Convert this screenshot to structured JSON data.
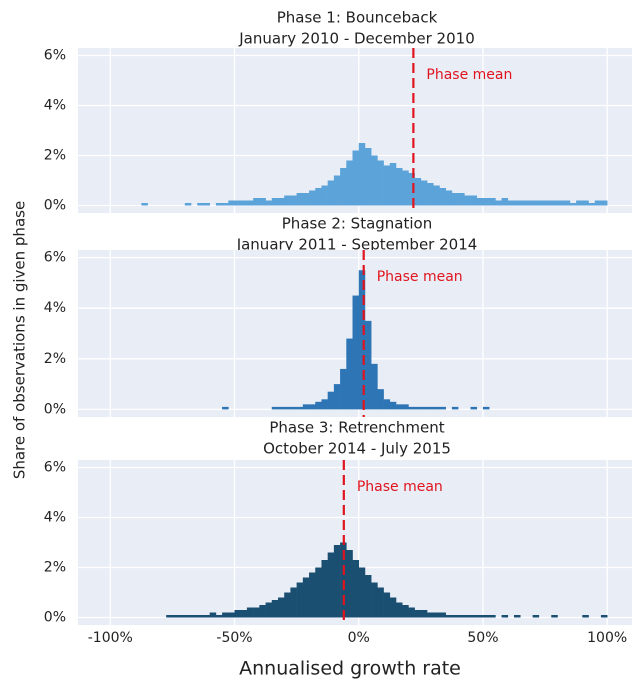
{
  "chart_data": [
    {
      "type": "histogram",
      "title": "Phase 1: Bounceback",
      "subtitle": "January 2010 - December 2010",
      "color": "#5ba3d9",
      "bins": [
        -100,
        -97.5,
        -95,
        -92.5,
        -90,
        -87.5,
        -85,
        -82.5,
        -80,
        -77.5,
        -75,
        -72.5,
        -70,
        -67.5,
        -65,
        -62.5,
        -60,
        -57.5,
        -55,
        -52.5,
        -50,
        -47.5,
        -45,
        -42.5,
        -40,
        -37.5,
        -35,
        -32.5,
        -30,
        -27.5,
        -25,
        -22.5,
        -20,
        -17.5,
        -15,
        -12.5,
        -10,
        -7.5,
        -5,
        -2.5,
        0,
        2.5,
        5,
        7.5,
        10,
        12.5,
        15,
        17.5,
        20,
        22.5,
        25,
        27.5,
        30,
        32.5,
        35,
        37.5,
        40,
        42.5,
        45,
        47.5,
        50,
        52.5,
        55,
        57.5,
        60,
        62.5,
        65,
        67.5,
        70,
        72.5,
        75,
        77.5,
        80,
        82.5,
        85,
        87.5,
        90,
        92.5,
        95,
        97.5,
        100
      ],
      "values": [
        0,
        0,
        0,
        0,
        0,
        0.1,
        0,
        0,
        0,
        0,
        0,
        0,
        0.1,
        0,
        0.1,
        0.1,
        0,
        0.1,
        0.1,
        0.2,
        0.2,
        0.2,
        0.2,
        0.3,
        0.3,
        0.2,
        0.3,
        0.3,
        0.4,
        0.4,
        0.5,
        0.5,
        0.6,
        0.7,
        0.8,
        1.0,
        1.2,
        1.5,
        1.8,
        2.2,
        2.5,
        2.3,
        2.0,
        1.8,
        1.6,
        1.7,
        1.5,
        1.4,
        1.3,
        1.1,
        1.0,
        0.9,
        0.8,
        0.7,
        0.6,
        0.5,
        0.5,
        0.4,
        0.4,
        0.3,
        0.3,
        0.3,
        0.2,
        0.3,
        0.2,
        0.2,
        0.2,
        0.2,
        0.2,
        0.2,
        0.2,
        0.2,
        0.2,
        0.2,
        0.1,
        0.2,
        0.2,
        0.1,
        0.2,
        0.2
      ],
      "mean": 22,
      "annotation": "Phase mean",
      "xlim": [
        -113,
        110
      ],
      "ylim": [
        -0.3,
        6.3
      ],
      "yticks": [
        {
          "value": 0,
          "label": "0%"
        },
        {
          "value": 2,
          "label": "2%"
        },
        {
          "value": 4,
          "label": "4%"
        },
        {
          "value": 6,
          "label": "6%"
        }
      ],
      "grid": true
    },
    {
      "type": "histogram",
      "title": "Phase 2: Stagnation",
      "subtitle": "January 2011 - September 2014",
      "color": "#2e75b6",
      "ylabel": "Share of observations in given phase",
      "bins": [
        -100,
        -97.5,
        -95,
        -92.5,
        -90,
        -87.5,
        -85,
        -82.5,
        -80,
        -77.5,
        -75,
        -72.5,
        -70,
        -67.5,
        -65,
        -62.5,
        -60,
        -57.5,
        -55,
        -52.5,
        -50,
        -47.5,
        -45,
        -42.5,
        -40,
        -37.5,
        -35,
        -32.5,
        -30,
        -27.5,
        -25,
        -22.5,
        -20,
        -17.5,
        -15,
        -12.5,
        -10,
        -7.5,
        -5,
        -2.5,
        0,
        2.5,
        5,
        7.5,
        10,
        12.5,
        15,
        17.5,
        20,
        22.5,
        25,
        27.5,
        30,
        32.5,
        35,
        37.5,
        40,
        42.5,
        45,
        47.5,
        50,
        52.5,
        55,
        57.5,
        60,
        62.5,
        65,
        67.5,
        70,
        72.5,
        75,
        77.5,
        80,
        82.5,
        85,
        87.5,
        90,
        92.5,
        95,
        97.5,
        100
      ],
      "values": [
        0,
        0,
        0,
        0,
        0,
        0,
        0,
        0,
        0,
        0,
        0,
        0,
        0,
        0,
        0,
        0,
        0,
        0,
        0.1,
        0,
        0,
        0,
        0,
        0,
        0,
        0,
        0.1,
        0.1,
        0.1,
        0.1,
        0.1,
        0.2,
        0.2,
        0.3,
        0.4,
        0.7,
        1.0,
        1.6,
        2.8,
        4.5,
        5.5,
        3.5,
        1.8,
        0.8,
        0.4,
        0.3,
        0.2,
        0.2,
        0.1,
        0.1,
        0.1,
        0.1,
        0.1,
        0.1,
        0,
        0.1,
        0,
        0,
        0.1,
        0,
        0.1,
        0,
        0,
        0,
        0,
        0,
        0,
        0,
        0,
        0,
        0,
        0,
        0,
        0,
        0,
        0,
        0,
        0,
        0,
        0
      ],
      "mean": 2,
      "annotation": "Phase mean",
      "xlim": [
        -113,
        110
      ],
      "ylim": [
        -0.3,
        6.3
      ],
      "yticks": [
        {
          "value": 0,
          "label": "0%"
        },
        {
          "value": 2,
          "label": "2%"
        },
        {
          "value": 4,
          "label": "4%"
        },
        {
          "value": 6,
          "label": "6%"
        }
      ],
      "grid": true
    },
    {
      "type": "histogram",
      "title": "Phase 3: Retrenchment",
      "subtitle": "October 2014 - July 2015",
      "color": "#1b4f72",
      "xlabel": "Annualised growth rate",
      "bins": [
        -100,
        -97.5,
        -95,
        -92.5,
        -90,
        -87.5,
        -85,
        -82.5,
        -80,
        -77.5,
        -75,
        -72.5,
        -70,
        -67.5,
        -65,
        -62.5,
        -60,
        -57.5,
        -55,
        -52.5,
        -50,
        -47.5,
        -45,
        -42.5,
        -40,
        -37.5,
        -35,
        -32.5,
        -30,
        -27.5,
        -25,
        -22.5,
        -20,
        -17.5,
        -15,
        -12.5,
        -10,
        -7.5,
        -5,
        -2.5,
        0,
        2.5,
        5,
        7.5,
        10,
        12.5,
        15,
        17.5,
        20,
        22.5,
        25,
        27.5,
        30,
        32.5,
        35,
        37.5,
        40,
        42.5,
        45,
        47.5,
        50,
        52.5,
        55,
        57.5,
        60,
        62.5,
        65,
        67.5,
        70,
        72.5,
        75,
        77.5,
        80,
        82.5,
        85,
        87.5,
        90,
        92.5,
        95,
        97.5,
        100
      ],
      "values": [
        0,
        0,
        0,
        0,
        0,
        0,
        0,
        0,
        0,
        0.1,
        0.1,
        0.1,
        0.1,
        0.1,
        0.1,
        0.1,
        0.2,
        0.1,
        0.2,
        0.2,
        0.3,
        0.3,
        0.4,
        0.4,
        0.5,
        0.6,
        0.7,
        0.8,
        1.0,
        1.2,
        1.4,
        1.6,
        1.8,
        2.0,
        2.3,
        2.6,
        2.9,
        3.0,
        2.7,
        2.3,
        2.0,
        1.7,
        1.4,
        1.2,
        1.0,
        0.8,
        0.6,
        0.5,
        0.4,
        0.3,
        0.3,
        0.2,
        0.2,
        0.2,
        0.1,
        0.1,
        0.1,
        0.1,
        0.1,
        0.1,
        0.1,
        0.1,
        0,
        0.1,
        0,
        0.1,
        0,
        0,
        0.1,
        0,
        0,
        0.1,
        0,
        0,
        0,
        0,
        0.1,
        0,
        0,
        0.1
      ],
      "mean": -6,
      "annotation": "Phase mean",
      "xlim": [
        -113,
        110
      ],
      "ylim": [
        -0.3,
        6.3
      ],
      "xticks": [
        {
          "value": -100,
          "label": "-100%"
        },
        {
          "value": -50,
          "label": "-50%"
        },
        {
          "value": 0,
          "label": "0%"
        },
        {
          "value": 50,
          "label": "50%"
        },
        {
          "value": 100,
          "label": "100%"
        }
      ],
      "yticks": [
        {
          "value": 0,
          "label": "0%"
        },
        {
          "value": 2,
          "label": "2%"
        },
        {
          "value": 4,
          "label": "4%"
        },
        {
          "value": 6,
          "label": "6%"
        }
      ],
      "grid": true
    }
  ]
}
